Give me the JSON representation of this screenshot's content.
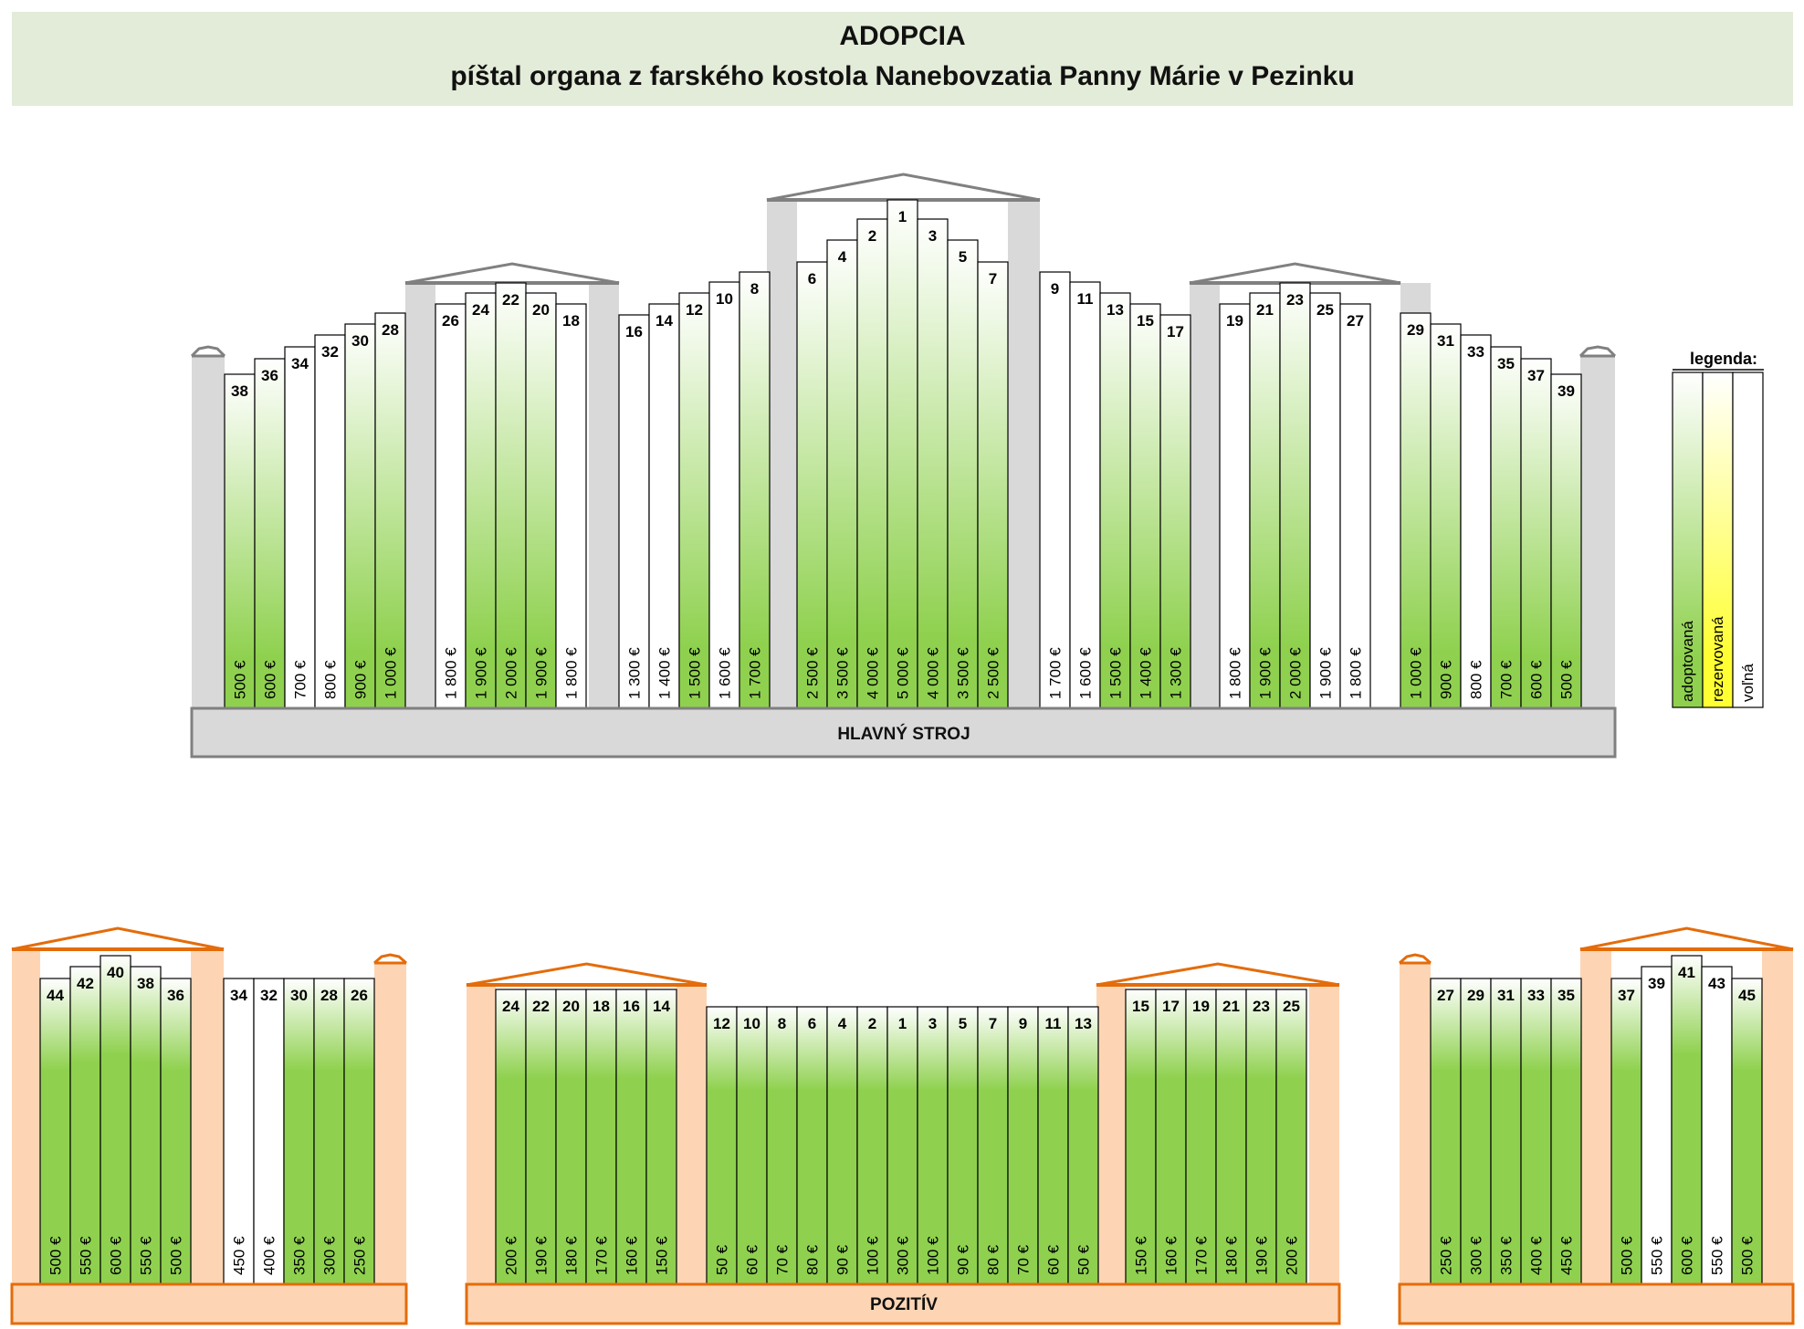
{
  "header": {
    "title": "ADOPCIA",
    "subtitle": "píštal organa z farského kostola Nanebovzatia Panny Márie v Pezinku"
  },
  "colors": {
    "adopted": "#8fd14f",
    "reserved": "#ffff33",
    "free": "#ffffff",
    "main_case": "#d9d9d9",
    "main_roof": "#808080",
    "positive_case": "#fdd5b4",
    "positive_roof": "#e46c0a"
  },
  "main_organ": {
    "label": "HLAVNÝ  STROJ",
    "groups": [
      {
        "pipes": [
          {
            "num": "38",
            "price": "500 €",
            "status": "adopted"
          },
          {
            "num": "36",
            "price": "600 €",
            "status": "adopted"
          },
          {
            "num": "34",
            "price": "700 €",
            "status": "free"
          },
          {
            "num": "32",
            "price": "800 €",
            "status": "free"
          },
          {
            "num": "30",
            "price": "900 €",
            "status": "adopted"
          },
          {
            "num": "28",
            "price": "1 000 €",
            "status": "adopted"
          }
        ]
      },
      {
        "pipes": [
          {
            "num": "26",
            "price": "1 800 €",
            "status": "free"
          },
          {
            "num": "24",
            "price": "1 900 €",
            "status": "adopted"
          },
          {
            "num": "22",
            "price": "2 000 €",
            "status": "adopted"
          },
          {
            "num": "20",
            "price": "1 900 €",
            "status": "adopted"
          },
          {
            "num": "18",
            "price": "1 800 €",
            "status": "free"
          }
        ]
      },
      {
        "pipes": [
          {
            "num": "16",
            "price": "1 300 €",
            "status": "free"
          },
          {
            "num": "14",
            "price": "1 400 €",
            "status": "free"
          },
          {
            "num": "12",
            "price": "1 500 €",
            "status": "adopted"
          },
          {
            "num": "10",
            "price": "1 600 €",
            "status": "free"
          },
          {
            "num": "8",
            "price": "1 700 €",
            "status": "adopted"
          }
        ]
      },
      {
        "pipes": [
          {
            "num": "6",
            "price": "2 500 €",
            "status": "adopted"
          },
          {
            "num": "4",
            "price": "3 500 €",
            "status": "adopted"
          },
          {
            "num": "2",
            "price": "4 000 €",
            "status": "adopted"
          },
          {
            "num": "1",
            "price": "5 000 €",
            "status": "adopted"
          },
          {
            "num": "3",
            "price": "4 000 €",
            "status": "adopted"
          },
          {
            "num": "5",
            "price": "3 500 €",
            "status": "adopted"
          },
          {
            "num": "7",
            "price": "2 500 €",
            "status": "adopted"
          }
        ]
      },
      {
        "pipes": [
          {
            "num": "9",
            "price": "1 700 €",
            "status": "free"
          },
          {
            "num": "11",
            "price": "1 600 €",
            "status": "free"
          },
          {
            "num": "13",
            "price": "1 500 €",
            "status": "adopted"
          },
          {
            "num": "15",
            "price": "1 400 €",
            "status": "adopted"
          },
          {
            "num": "17",
            "price": "1 300 €",
            "status": "adopted"
          }
        ]
      },
      {
        "pipes": [
          {
            "num": "19",
            "price": "1 800 €",
            "status": "free"
          },
          {
            "num": "21",
            "price": "1 900 €",
            "status": "adopted"
          },
          {
            "num": "23",
            "price": "2 000 €",
            "status": "adopted"
          },
          {
            "num": "25",
            "price": "1 900 €",
            "status": "free"
          },
          {
            "num": "27",
            "price": "1 800 €",
            "status": "free"
          }
        ]
      },
      {
        "pipes": [
          {
            "num": "29",
            "price": "1 000 €",
            "status": "adopted"
          },
          {
            "num": "31",
            "price": "900 €",
            "status": "adopted"
          },
          {
            "num": "33",
            "price": "800 €",
            "status": "free"
          },
          {
            "num": "35",
            "price": "700 €",
            "status": "adopted"
          },
          {
            "num": "37",
            "price": "600 €",
            "status": "adopted"
          },
          {
            "num": "39",
            "price": "500 €",
            "status": "adopted"
          }
        ]
      }
    ]
  },
  "positive": {
    "label": "POZITÍV",
    "groups": [
      {
        "pipes": [
          {
            "num": "44",
            "price": "500 €",
            "status": "adopted"
          },
          {
            "num": "42",
            "price": "550 €",
            "status": "adopted"
          },
          {
            "num": "40",
            "price": "600 €",
            "status": "adopted"
          },
          {
            "num": "38",
            "price": "550 €",
            "status": "adopted"
          },
          {
            "num": "36",
            "price": "500 €",
            "status": "adopted"
          }
        ]
      },
      {
        "pipes": [
          {
            "num": "34",
            "price": "450 €",
            "status": "free"
          },
          {
            "num": "32",
            "price": "400 €",
            "status": "free"
          },
          {
            "num": "30",
            "price": "350 €",
            "status": "adopted"
          },
          {
            "num": "28",
            "price": "300 €",
            "status": "adopted"
          },
          {
            "num": "26",
            "price": "250 €",
            "status": "adopted"
          }
        ]
      },
      {
        "pipes": [
          {
            "num": "24",
            "price": "200 €",
            "status": "adopted"
          },
          {
            "num": "22",
            "price": "190 €",
            "status": "adopted"
          },
          {
            "num": "20",
            "price": "180 €",
            "status": "adopted"
          },
          {
            "num": "18",
            "price": "170 €",
            "status": "adopted"
          },
          {
            "num": "16",
            "price": "160 €",
            "status": "adopted"
          },
          {
            "num": "14",
            "price": "150 €",
            "status": "adopted"
          }
        ]
      },
      {
        "pipes": [
          {
            "num": "12",
            "price": "50 €",
            "status": "adopted"
          },
          {
            "num": "10",
            "price": "60 €",
            "status": "adopted"
          },
          {
            "num": "8",
            "price": "70 €",
            "status": "adopted"
          },
          {
            "num": "6",
            "price": "80 €",
            "status": "adopted"
          },
          {
            "num": "4",
            "price": "90 €",
            "status": "adopted"
          },
          {
            "num": "2",
            "price": "100 €",
            "status": "adopted"
          },
          {
            "num": "1",
            "price": "300 €",
            "status": "adopted"
          },
          {
            "num": "3",
            "price": "100 €",
            "status": "adopted"
          },
          {
            "num": "5",
            "price": "90 €",
            "status": "adopted"
          },
          {
            "num": "7",
            "price": "80 €",
            "status": "adopted"
          },
          {
            "num": "9",
            "price": "70 €",
            "status": "adopted"
          },
          {
            "num": "11",
            "price": "60 €",
            "status": "adopted"
          },
          {
            "num": "13",
            "price": "50 €",
            "status": "adopted"
          }
        ]
      },
      {
        "pipes": [
          {
            "num": "15",
            "price": "150 €",
            "status": "adopted"
          },
          {
            "num": "17",
            "price": "160 €",
            "status": "adopted"
          },
          {
            "num": "19",
            "price": "170 €",
            "status": "adopted"
          },
          {
            "num": "21",
            "price": "180 €",
            "status": "adopted"
          },
          {
            "num": "23",
            "price": "190 €",
            "status": "adopted"
          },
          {
            "num": "25",
            "price": "200 €",
            "status": "adopted"
          }
        ]
      },
      {
        "pipes": [
          {
            "num": "27",
            "price": "250 €",
            "status": "adopted"
          },
          {
            "num": "29",
            "price": "300 €",
            "status": "adopted"
          },
          {
            "num": "31",
            "price": "350 €",
            "status": "adopted"
          },
          {
            "num": "33",
            "price": "400 €",
            "status": "adopted"
          },
          {
            "num": "35",
            "price": "450 €",
            "status": "adopted"
          }
        ]
      },
      {
        "pipes": [
          {
            "num": "37",
            "price": "500 €",
            "status": "adopted"
          },
          {
            "num": "39",
            "price": "550 €",
            "status": "free"
          },
          {
            "num": "41",
            "price": "600 €",
            "status": "adopted"
          },
          {
            "num": "43",
            "price": "550 €",
            "status": "free"
          },
          {
            "num": "45",
            "price": "500 €",
            "status": "adopted"
          }
        ]
      }
    ]
  },
  "legend": {
    "title": "legenda:",
    "items": [
      {
        "label": "adoptovaná",
        "status": "adopted"
      },
      {
        "label": "rezervovaná",
        "status": "reserved"
      },
      {
        "label": "voľná",
        "status": "free"
      }
    ]
  }
}
